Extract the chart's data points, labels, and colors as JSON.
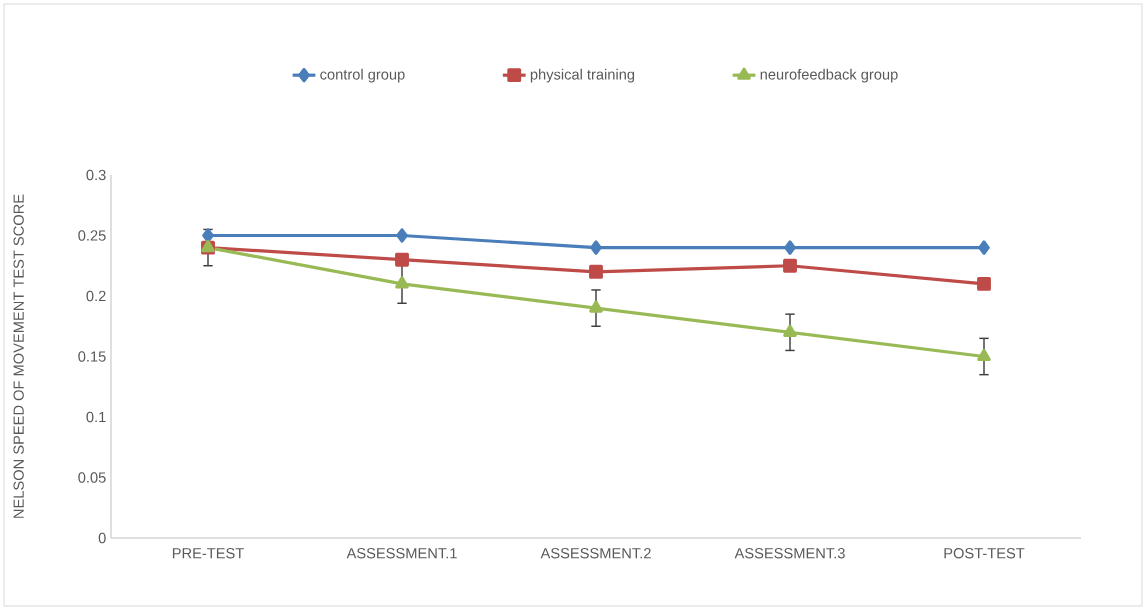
{
  "chart_data": {
    "type": "line",
    "ylabel": "NELSON SPEED OF MOVEMENT TEST SCORE",
    "categories": [
      "PRE-TEST",
      "ASSESSMENT.1",
      "ASSESSMENT.2",
      "ASSESSMENT.3",
      "POST-TEST"
    ],
    "series": [
      {
        "name": "control group",
        "color": "#4a7ebb",
        "marker": "diamond",
        "values": [
          0.25,
          0.25,
          0.24,
          0.24,
          0.24
        ]
      },
      {
        "name": "physical training",
        "color": "#be4b48",
        "marker": "square",
        "values": [
          0.24,
          0.23,
          0.22,
          0.225,
          0.21
        ]
      },
      {
        "name": "neurofeedback group",
        "color": "#98b954",
        "marker": "triangle",
        "values": [
          0.24,
          0.21,
          0.19,
          0.17,
          0.15
        ],
        "errors": [
          0.015,
          0.016,
          0.015,
          0.015,
          0.015
        ]
      }
    ],
    "ylim": [
      0,
      0.3
    ],
    "yticks": [
      0,
      0.05,
      0.1,
      0.15,
      0.2,
      0.25,
      0.3
    ],
    "grid": false,
    "legend": "top",
    "line_style": "solid"
  }
}
